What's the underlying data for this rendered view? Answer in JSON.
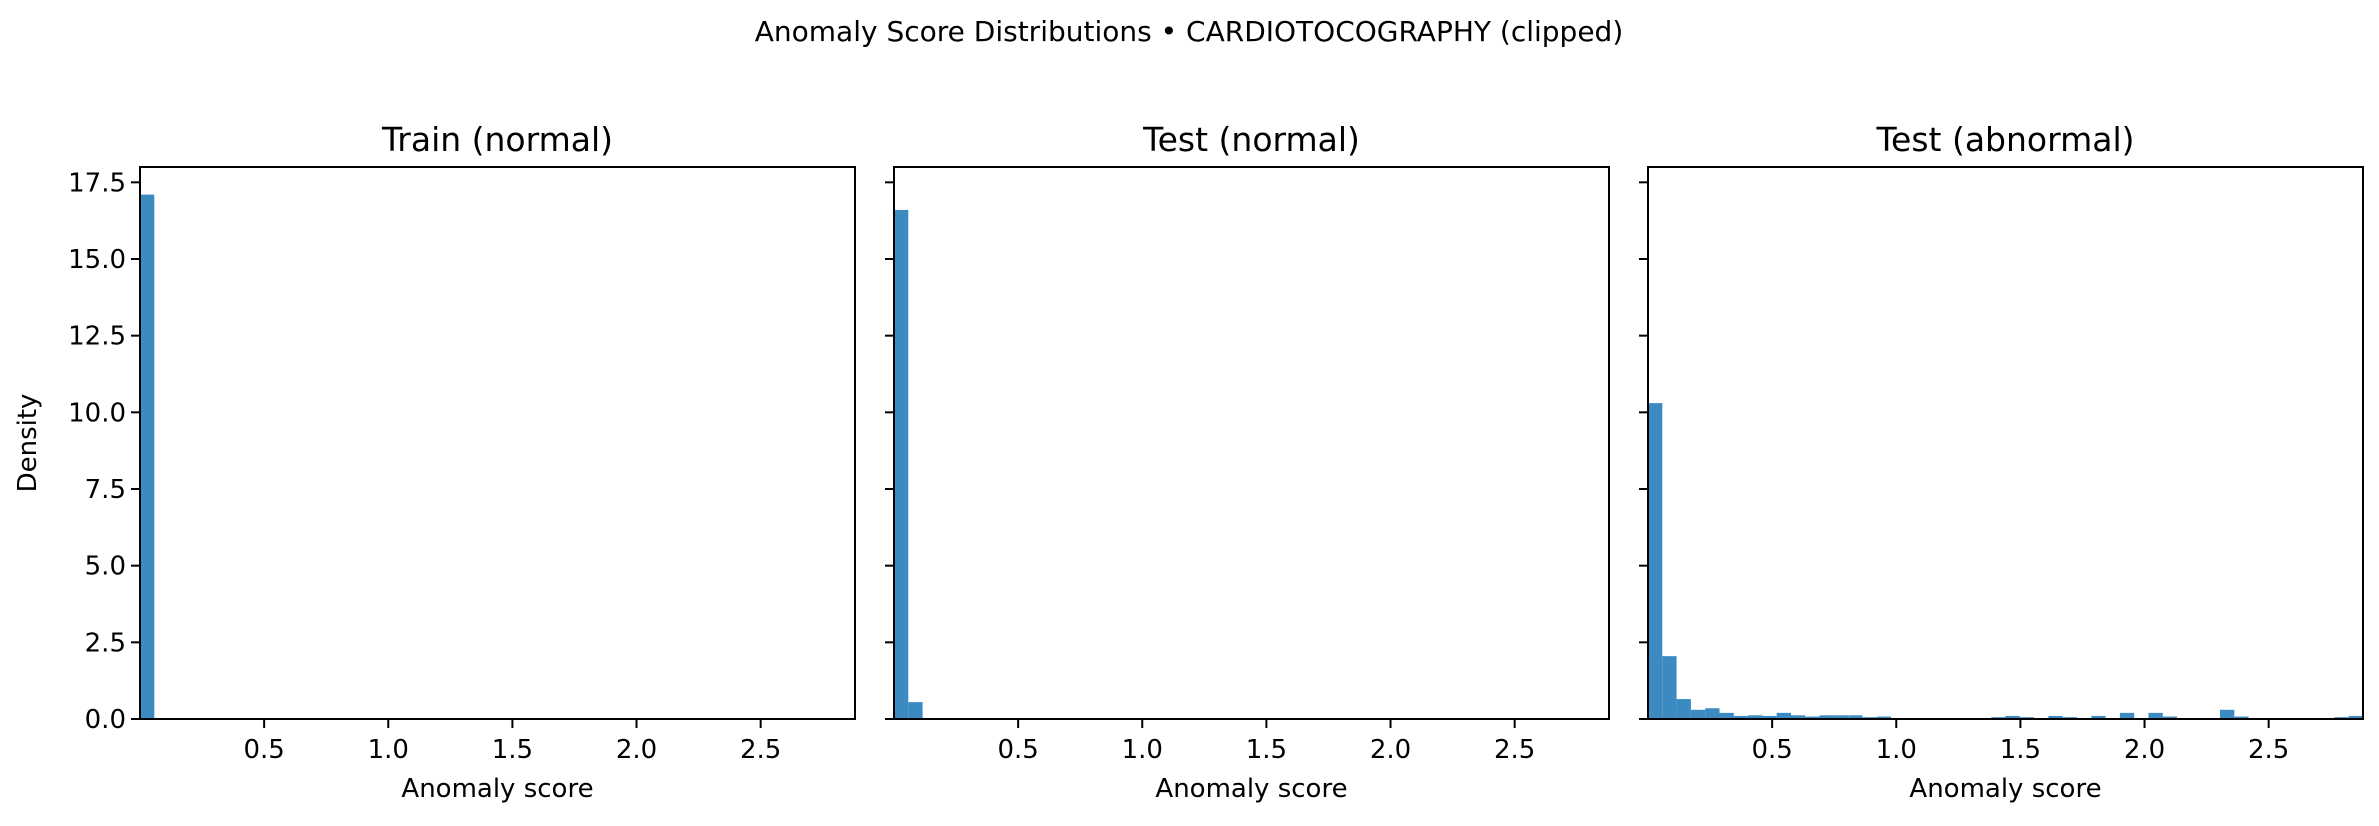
{
  "figure": {
    "title": "Anomaly Score Distributions • CARDIOTOCOGRAPHY (clipped)"
  },
  "colors": {
    "bar": "#3b8bc2",
    "axis": "#000000",
    "background": "#ffffff"
  },
  "chart_data": [
    {
      "type": "bar",
      "title": "Train (normal)",
      "xlabel": "Anomaly score",
      "ylabel": "Density",
      "xlim": [
        0.0,
        2.88
      ],
      "ylim": [
        0,
        18.0
      ],
      "bin_width": 0.0576,
      "xticks": [
        "0.5",
        "1.0",
        "1.5",
        "2.0",
        "2.5"
      ],
      "yticks": [
        "0.0",
        "2.5",
        "5.0",
        "7.5",
        "10.0",
        "12.5",
        "15.0",
        "17.5"
      ],
      "series": [
        {
          "bins": [
            {
              "x": 0.0,
              "density": 17.1
            }
          ]
        }
      ]
    },
    {
      "type": "bar",
      "title": "Test (normal)",
      "xlabel": "Anomaly score",
      "ylabel": "",
      "xlim": [
        0.0,
        2.88
      ],
      "ylim": [
        0,
        18.0
      ],
      "bin_width": 0.0576,
      "xticks": [
        "0.5",
        "1.0",
        "1.5",
        "2.0",
        "2.5"
      ],
      "yticks": [],
      "series": [
        {
          "bins": [
            {
              "x": 0.0,
              "density": 16.6
            },
            {
              "x": 0.0576,
              "density": 0.55
            }
          ]
        }
      ]
    },
    {
      "type": "bar",
      "title": "Test (abnormal)",
      "xlabel": "Anomaly score",
      "ylabel": "",
      "xlim": [
        0.0,
        2.88
      ],
      "ylim": [
        0,
        18.0
      ],
      "bin_width": 0.0576,
      "xticks": [
        "0.5",
        "1.0",
        "1.5",
        "2.0",
        "2.5"
      ],
      "yticks": [],
      "series": [
        {
          "bins": [
            {
              "x": 0.0,
              "density": 10.3
            },
            {
              "x": 0.0576,
              "density": 2.05
            },
            {
              "x": 0.1152,
              "density": 0.65
            },
            {
              "x": 0.1728,
              "density": 0.3
            },
            {
              "x": 0.2304,
              "density": 0.35
            },
            {
              "x": 0.288,
              "density": 0.2
            },
            {
              "x": 0.3456,
              "density": 0.1
            },
            {
              "x": 0.4032,
              "density": 0.12
            },
            {
              "x": 0.4608,
              "density": 0.1
            },
            {
              "x": 0.5184,
              "density": 0.2
            },
            {
              "x": 0.576,
              "density": 0.12
            },
            {
              "x": 0.6336,
              "density": 0.08
            },
            {
              "x": 0.6912,
              "density": 0.12
            },
            {
              "x": 0.7488,
              "density": 0.12
            },
            {
              "x": 0.8064,
              "density": 0.12
            },
            {
              "x": 0.864,
              "density": 0.06
            },
            {
              "x": 0.9216,
              "density": 0.08
            },
            {
              "x": 1.3824,
              "density": 0.06
            },
            {
              "x": 1.44,
              "density": 0.1
            },
            {
              "x": 1.4976,
              "density": 0.06
            },
            {
              "x": 1.6128,
              "density": 0.1
            },
            {
              "x": 1.6704,
              "density": 0.06
            },
            {
              "x": 1.7856,
              "density": 0.1
            },
            {
              "x": 1.9008,
              "density": 0.2
            },
            {
              "x": 2.016,
              "density": 0.2
            },
            {
              "x": 2.0736,
              "density": 0.08
            },
            {
              "x": 2.304,
              "density": 0.3
            },
            {
              "x": 2.3616,
              "density": 0.08
            },
            {
              "x": 2.7648,
              "density": 0.06
            },
            {
              "x": 2.8224,
              "density": 0.1
            }
          ]
        }
      ]
    }
  ]
}
